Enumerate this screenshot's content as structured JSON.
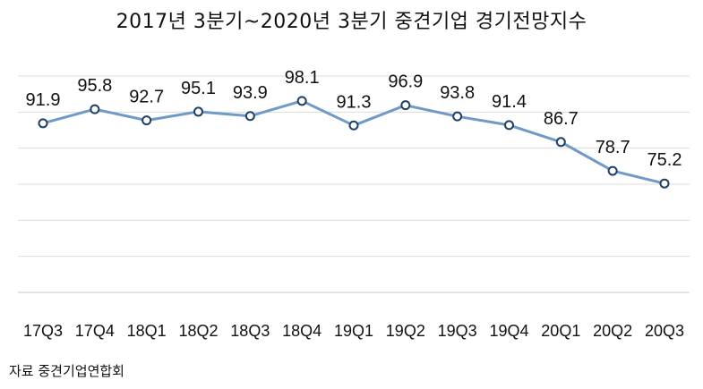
{
  "chart_data": {
    "type": "line",
    "title": "2017년 3분기~2020년 3분기 중견기업 경기전망지수",
    "xlabel": "",
    "ylabel": "",
    "categories": [
      "17Q3",
      "17Q4",
      "18Q1",
      "18Q2",
      "18Q3",
      "18Q4",
      "19Q1",
      "19Q2",
      "19Q3",
      "19Q4",
      "20Q1",
      "20Q2",
      "20Q3"
    ],
    "series": [
      {
        "values": [
          91.9,
          95.8,
          92.7,
          95.1,
          93.9,
          98.1,
          91.3,
          96.9,
          93.8,
          91.4,
          86.7,
          78.7,
          75.2
        ]
      }
    ],
    "ylim": [
      45,
      105
    ],
    "grid": true,
    "line_color": "#6f9ac8",
    "marker_fill": "#ffffff",
    "marker_stroke": "#1f3f66"
  },
  "source": "자료 중견기업연합회"
}
